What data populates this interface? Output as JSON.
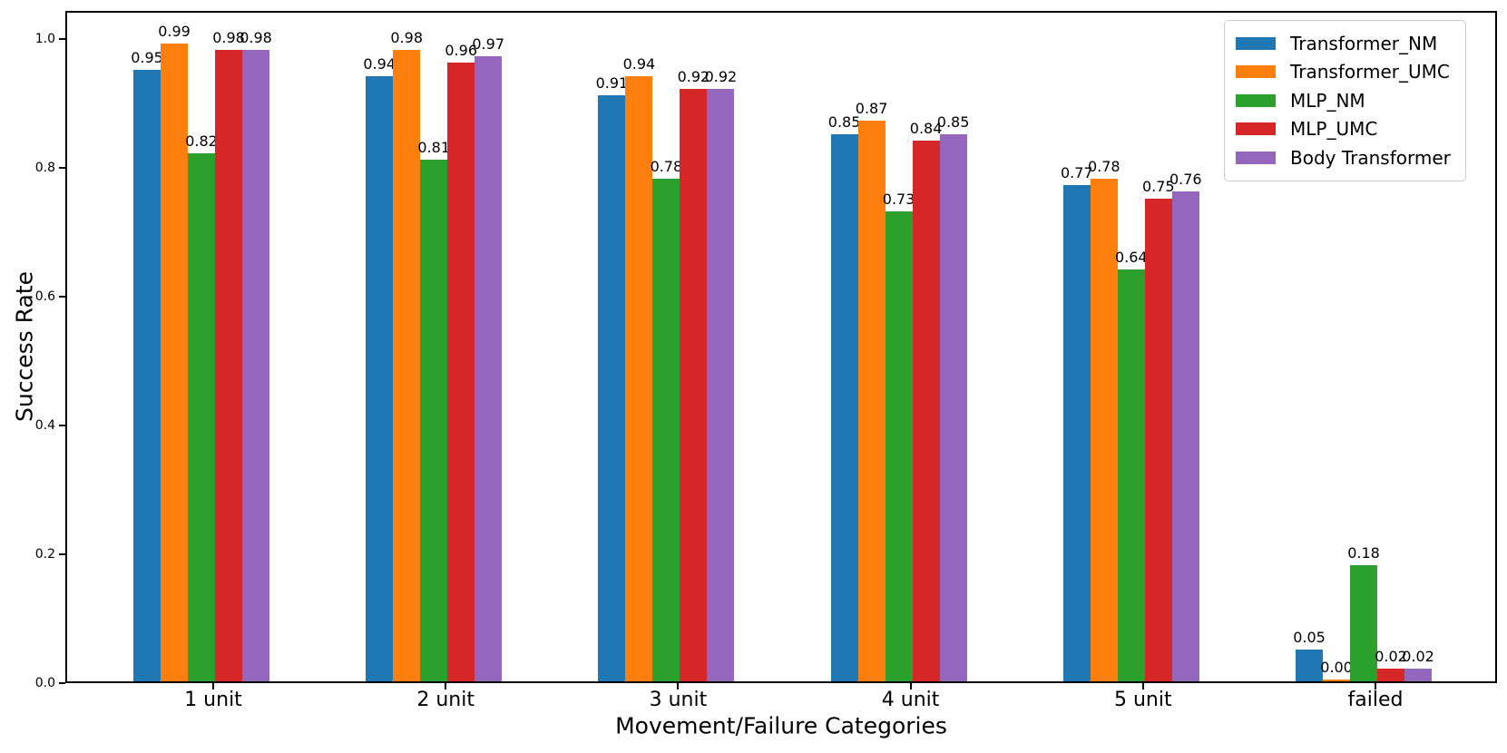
{
  "chart_data": {
    "type": "bar",
    "title": "",
    "xlabel": "Movement/Failure Categories",
    "ylabel": "Success Rate",
    "categories": [
      "1 unit",
      "2 unit",
      "3 unit",
      "4 unit",
      "5 unit",
      "failed"
    ],
    "series": [
      {
        "name": "Transformer_NM",
        "color": "#1f77b4",
        "values": [
          0.95,
          0.94,
          0.91,
          0.85,
          0.77,
          0.05
        ],
        "labels": [
          "0.95",
          "0.94",
          "0.91",
          "0.85",
          "0.77",
          "0.05"
        ]
      },
      {
        "name": "Transformer_UMC",
        "color": "#ff7f0e",
        "values": [
          0.99,
          0.98,
          0.94,
          0.87,
          0.78,
          0.0
        ],
        "labels": [
          "0.99",
          "0.98",
          "0.94",
          "0.87",
          "0.78",
          "0.00"
        ]
      },
      {
        "name": "MLP_NM",
        "color": "#2ca02c",
        "values": [
          0.82,
          0.81,
          0.78,
          0.73,
          0.64,
          0.18
        ],
        "labels": [
          "0.82",
          "0.81",
          "0.78",
          "0.73",
          "0.64",
          "0.18"
        ]
      },
      {
        "name": "MLP_UMC",
        "color": "#d62728",
        "values": [
          0.98,
          0.96,
          0.92,
          0.84,
          0.75,
          0.02
        ],
        "labels": [
          "0.98",
          "0.96",
          "0.92",
          "0.84",
          "0.75",
          "0.02"
        ]
      },
      {
        "name": "Body Transformer",
        "color": "#9467bd",
        "values": [
          0.98,
          0.97,
          0.92,
          0.85,
          0.76,
          0.02
        ],
        "labels": [
          "0.98",
          "0.97",
          "0.92",
          "0.85",
          "0.76",
          "0.02"
        ]
      }
    ],
    "y_ticks": [
      "0.0",
      "0.2",
      "0.4",
      "0.6",
      "0.8",
      "1.0"
    ],
    "ylim": [
      0.0,
      1.044
    ],
    "grid": false,
    "legend_position": "upper right"
  }
}
